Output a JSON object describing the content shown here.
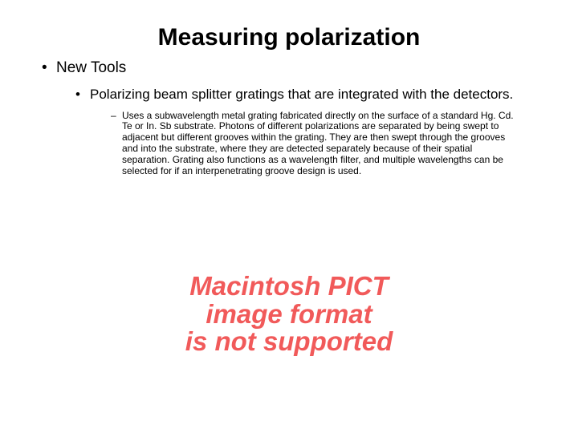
{
  "title": "Measuring polarization",
  "bullets": {
    "l1": "New Tools",
    "l2": "Polarizing beam splitter gratings that are integrated with the detectors.",
    "l3": "Uses a subwavelength metal grating fabricated directly on the surface of a standard Hg. Cd. Te or In. Sb substrate. Photons of different polarizations are separated by being swept to adjacent but different grooves within the grating. They are then swept through the grooves and into the substrate, where they are detected separately because of their spatial separation. Grating also functions as a wavelength filter, and multiple wavelengths can be selected for if an interpenetrating groove design is used."
  },
  "error": {
    "line1": "Macintosh PICT",
    "line2": "image format",
    "line3": "is not supported"
  },
  "colors": {
    "text": "#000000",
    "error": "#f15a5a",
    "background": "#ffffff"
  },
  "fonts": {
    "title_size": 30,
    "l1_size": 19,
    "l2_size": 17,
    "l3_size": 12,
    "error_size": 33
  }
}
